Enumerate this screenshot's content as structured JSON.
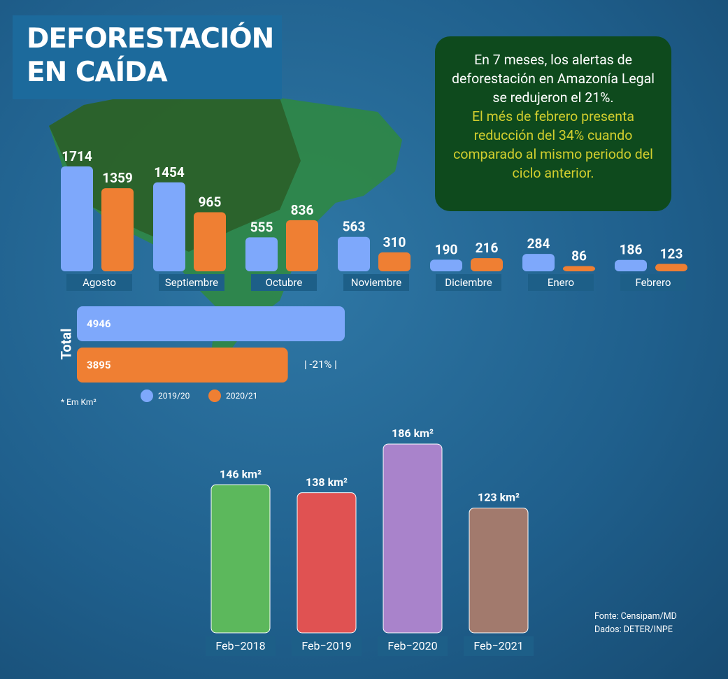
{
  "title": "DEFORESTACIÓN EN CAÍDA",
  "summary": [
    "En 7 meses, los alertas de deforestación en Amazonía Legal se redujeron el 21%.",
    "El més de febrero presenta reducción del 34% cuando comparado al mismo periodo del ciclo anterior."
  ],
  "note": "* Em Km²",
  "source": [
    "Fonte: Censipam/MD",
    "Dados: DETER/INPE"
  ],
  "chart_data": [
    {
      "type": "bar",
      "categories": [
        "Agosto",
        "Septiembre",
        "Octubre",
        "Noviembre",
        "Diciembre",
        "Enero",
        "Febrero"
      ],
      "series": [
        {
          "name": "2019/20",
          "color": "#7ea8fb",
          "values": [
            1714,
            1454,
            555,
            563,
            190,
            284,
            186
          ]
        },
        {
          "name": "2020/21",
          "color": "#ef7f33",
          "values": [
            1359,
            965,
            836,
            310,
            216,
            86,
            123
          ]
        }
      ]
    },
    {
      "type": "hbar",
      "title": "Total",
      "values": [
        4946,
        3895
      ],
      "colors": [
        "#7ea8fb",
        "#ef7f33"
      ],
      "annotation": "| -21% |"
    },
    {
      "type": "bar",
      "categories": [
        "Feb−2018",
        "Feb−2019",
        "Feb−2020",
        "Feb−2021"
      ],
      "values": [
        146,
        138,
        186,
        123
      ],
      "value_labels": [
        "146 km²",
        "138 km²",
        "186 km²",
        "123 km²"
      ],
      "colors": [
        "#5cb85c",
        "#e05252",
        "#a983cb",
        "#a27a6d"
      ]
    }
  ]
}
